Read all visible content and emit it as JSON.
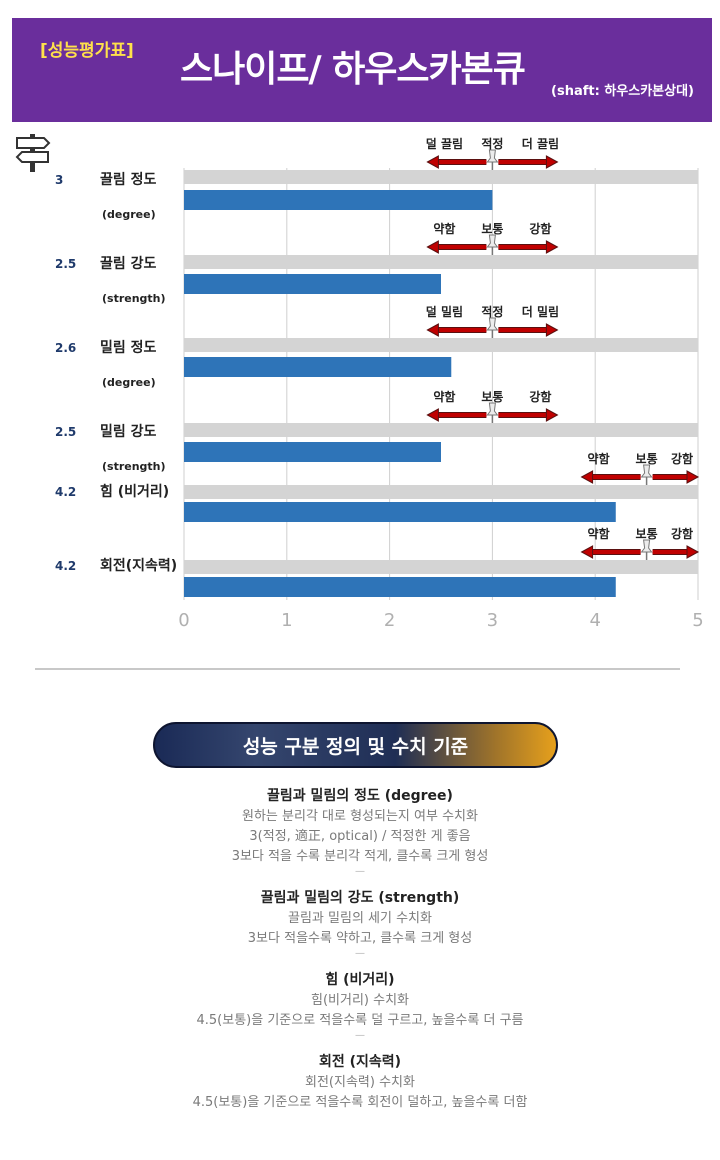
{
  "header": {
    "tag": "[성능평가표]",
    "title": "스나이프/ 하우스카본큐",
    "subtitle": "(shaft: 하우스카본상대)"
  },
  "colors": {
    "header_bg": "#6a2e9c",
    "tag_text": "#ffe14a",
    "bar": "#2e74b8",
    "track": "#d4d4d4",
    "arrow": "#c00000"
  },
  "chart_data": {
    "type": "bar",
    "orientation": "horizontal",
    "xlim": [
      0,
      5
    ],
    "x_ticks": [
      "0",
      "1",
      "2",
      "3",
      "4",
      "5"
    ],
    "grid": true,
    "rows": [
      {
        "label": "끌림 정도",
        "sublabel": "(degree)",
        "value_label": "3",
        "value": 3.0,
        "scale": {
          "left": "덜 끌림",
          "mid": "적정",
          "right": "더 끌림",
          "center": 3.0
        }
      },
      {
        "label": "끌림 강도",
        "sublabel": "(strength)",
        "value_label": "2.5",
        "value": 2.5,
        "scale": {
          "left": "약함",
          "mid": "보통",
          "right": "강함",
          "center": 3.0
        }
      },
      {
        "label": "밀림 정도",
        "sublabel": "(degree)",
        "value_label": "2.6",
        "value": 2.6,
        "scale": {
          "left": "덜 밀림",
          "mid": "적정",
          "right": "더 밀림",
          "center": 3.0
        }
      },
      {
        "label": "밀림 강도",
        "sublabel": "(strength)",
        "value_label": "2.5",
        "value": 2.5,
        "scale": {
          "left": "약함",
          "mid": "보통",
          "right": "강함",
          "center": 3.0
        }
      },
      {
        "label": "힘 (비거리)",
        "sublabel": "",
        "value_label": "4.2",
        "value": 4.2,
        "scale": {
          "left": "약함",
          "mid": "보통",
          "right": "강함",
          "center": 4.5
        }
      },
      {
        "label": "회전(지속력)",
        "sublabel": "",
        "value_label": "4.2",
        "value": 4.2,
        "scale": {
          "left": "약함",
          "mid": "보통",
          "right": "강함",
          "center": 4.5
        }
      }
    ]
  },
  "section_banner": "성능 구분 정의 및 수치 기준",
  "definitions": [
    {
      "heading": "끌림과 밀림의 정도 (degree)",
      "lines": [
        "원하는 분리각 대로 형성되는지 여부 수치화",
        "3(적정, 適正, optical) / 적정한 게 좋음",
        "3보다 적을 수록 분리각 적게, 클수록 크게 형성"
      ]
    },
    {
      "heading": "끌림과 밀림의 강도 (strength)",
      "lines": [
        "끌림과 밀림의 세기 수치화",
        "3보다 적을수록 약하고, 클수록 크게 형성"
      ]
    },
    {
      "heading": "힘 (비거리)",
      "lines": [
        "힘(비거리) 수치화",
        "4.5(보통)을 기준으로 적을수록 덜 구르고, 높을수록 더 구름"
      ]
    },
    {
      "heading": "회전 (지속력)",
      "lines": [
        "회전(지속력) 수치화",
        "4.5(보통)을 기준으로 적을수록 회전이 덜하고, 높을수록 더함"
      ]
    }
  ]
}
